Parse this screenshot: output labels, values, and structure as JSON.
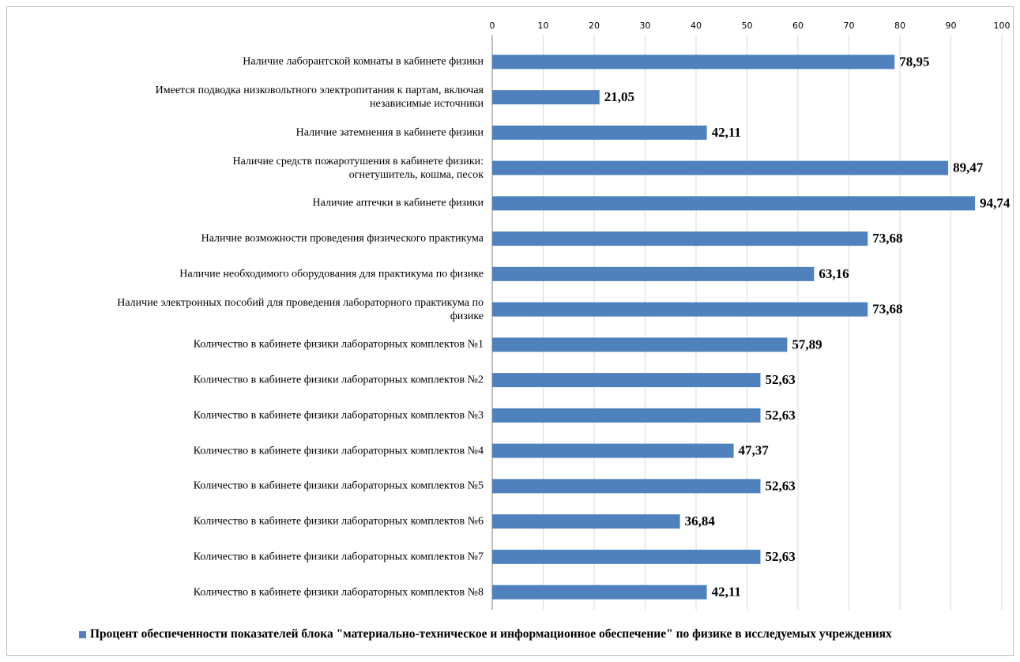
{
  "chart_data": {
    "type": "barh",
    "categories": [
      "Наличие лаборантской комнаты в кабинете физики",
      "Имеется подводка низковольтного электропитания к партам, включая\nнезависимые источники",
      "Наличие затемнения в кабинете физики",
      "Наличие средств пожаротушения в кабинете физики:\nогнетушитель, кошма, песок",
      "Наличие аптечки в кабинете физики",
      "Наличие возможности проведения физического практикума",
      "Наличие необходимого оборудования для практикума по физике",
      "Наличие электронных пособий для проведения лабораторного практикума по\nфизике",
      "Количество в кабинете физики лабораторных комплектов №1",
      "Количество в кабинете физики лабораторных комплектов №2",
      "Количество в кабинете физики лабораторных комплектов №3",
      "Количество в кабинете физики лабораторных комплектов №4",
      "Количество в кабинете физики лабораторных комплектов №5",
      "Количество в кабинете физики лабораторных комплектов №6",
      "Количество в кабинете физики лабораторных комплектов №7",
      "Количество в кабинете физики лабораторных комплектов №8"
    ],
    "series": [
      {
        "name": "Процент обеспеченности показателей блока \"материально-техническое и информационное обеспечение\" по физике в исследуемых учреждениях",
        "color": "#4f81bd",
        "values": [
          78.95,
          21.05,
          42.11,
          89.47,
          94.74,
          73.68,
          63.16,
          73.68,
          57.89,
          52.63,
          52.63,
          47.37,
          52.63,
          36.84,
          52.63,
          42.11
        ],
        "value_labels": [
          "78,95",
          "21,05",
          "42,11",
          "89,47",
          "94,74",
          "73,68",
          "63,16",
          "73,68",
          "57,89",
          "52,63",
          "52,63",
          "47,37",
          "52,63",
          "36,84",
          "52,63",
          "42,11"
        ]
      }
    ],
    "xlim": [
      0,
      100
    ],
    "xticks": [
      0,
      10,
      20,
      30,
      40,
      50,
      60,
      70,
      80,
      90,
      100
    ],
    "grid": true,
    "legend": "bottom"
  }
}
